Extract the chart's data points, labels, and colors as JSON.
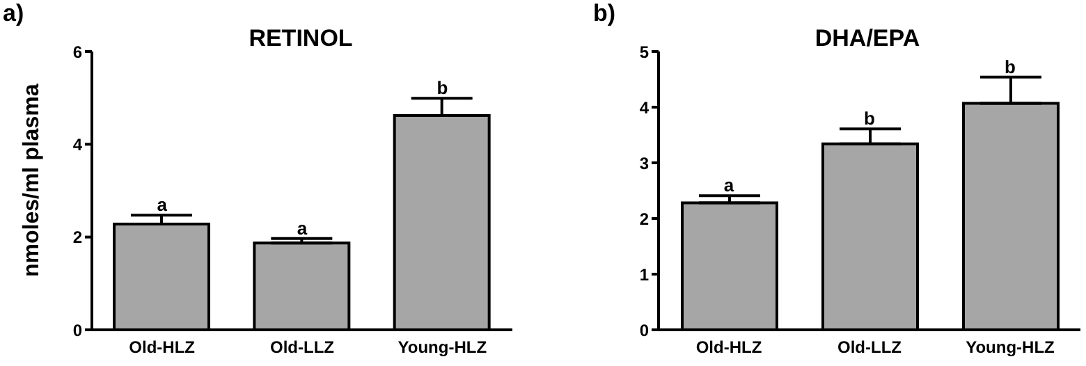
{
  "chart_data": [
    {
      "type": "bar",
      "title": "RETINOL",
      "ylabel": "nmoles/ml plasma",
      "categories": [
        "Old-HLZ",
        "Old-LLZ",
        "Young-HLZ"
      ],
      "values": [
        2.28,
        1.87,
        4.62
      ],
      "errors": [
        0.19,
        0.1,
        0.37
      ],
      "color": "#a6a6a6",
      "ylim": [
        0,
        6
      ],
      "yticks": [
        0,
        2,
        4,
        6
      ],
      "grid": false,
      "legend": false,
      "annotations": [
        "a)",
        {
          "text": "a",
          "x": "Old-HLZ",
          "y": 2.47
        },
        {
          "text": "a",
          "x": "Old-LLZ",
          "y": 1.97
        },
        {
          "text": "b",
          "x": "Young-HLZ",
          "y": 4.99
        }
      ]
    },
    {
      "type": "bar",
      "title": "DHA/EPA",
      "categories": [
        "Old-HLZ",
        "Old-LLZ",
        "Young-HLZ"
      ],
      "values": [
        2.28,
        3.34,
        4.07
      ],
      "errors": [
        0.13,
        0.27,
        0.47
      ],
      "color": "#a6a6a6",
      "ylim": [
        0,
        5
      ],
      "yticks": [
        0,
        1,
        2,
        3,
        4,
        5
      ],
      "grid": false,
      "legend": false,
      "annotations": [
        "b)",
        {
          "text": "a",
          "x": "Old-HLZ",
          "y": 2.41
        },
        {
          "text": "b",
          "x": "Old-LLZ",
          "y": 3.61
        },
        {
          "text": "b",
          "x": "Young-HLZ",
          "y": 4.54
        }
      ]
    }
  ]
}
